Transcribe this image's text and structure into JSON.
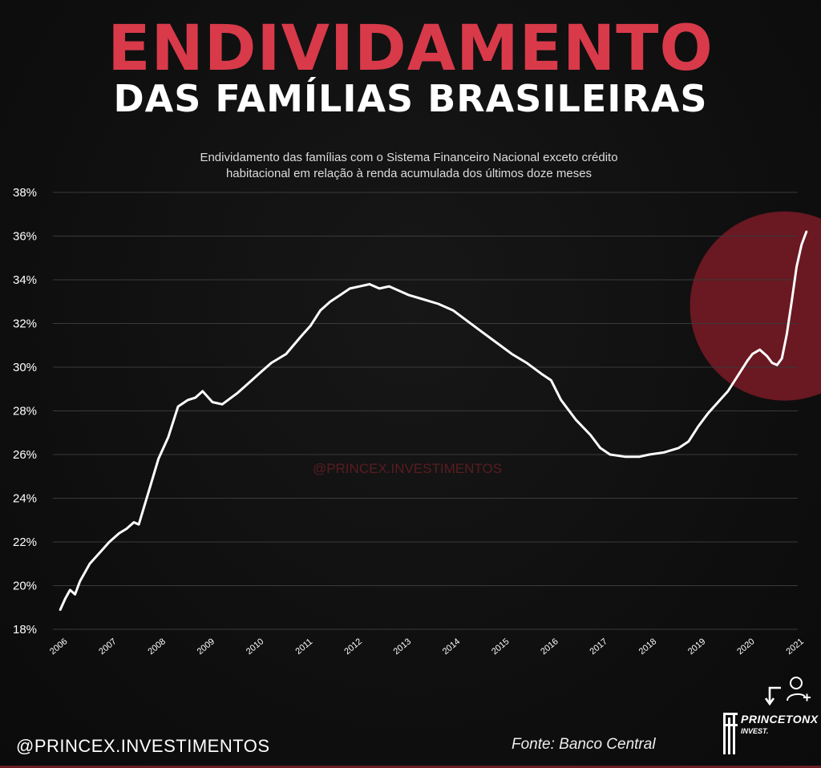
{
  "title": "ENDIVIDAMENTO",
  "subtitle_title": "DAS FAMÍLIAS BRASILEIRAS",
  "description_line1": "Endividamento das famílias com o Sistema Financeiro Nacional exceto crédito",
  "description_line2": "habitacional em relação à renda acumulada dos últimos doze meses",
  "watermark": "@PRINCEX.INVESTIMENTOS",
  "footer": {
    "handle": "@PRINCEX.INVESTIMENTOS",
    "source": "Fonte: Banco Central"
  },
  "brand": {
    "name": "PRINCETONX",
    "sub": "INVEST."
  },
  "colors": {
    "title_red": "#d83a4a",
    "highlight_circle": "#7a1a24",
    "line": "#ffffff",
    "grid": "#3a3a3a"
  },
  "icons": [
    "share-arrow-icon",
    "add-user-icon"
  ],
  "chart_data": {
    "type": "line",
    "title": "",
    "xlabel": "",
    "ylabel": "",
    "ylim": [
      18,
      38
    ],
    "y_ticks": [
      "18%",
      "20%",
      "22%",
      "24%",
      "26%",
      "28%",
      "30%",
      "32%",
      "34%",
      "36%",
      "38%"
    ],
    "x_ticks": [
      "2006",
      "2007",
      "2008",
      "2009",
      "2010",
      "2011",
      "2012",
      "2013",
      "2014",
      "2015",
      "2016",
      "2017",
      "2018",
      "2019",
      "2020",
      "2021"
    ],
    "grid": "horizontal",
    "highlight": {
      "x": 2021.0,
      "y": 32.8,
      "note": "red circle around 2020-2021 surge"
    },
    "series": [
      {
        "x": [
          2006.0,
          2006.1,
          2006.2,
          2006.3,
          2006.4,
          2006.6,
          2006.8,
          2007.0,
          2007.2,
          2007.35,
          2007.5,
          2007.6,
          2007.8,
          2008.0,
          2008.2,
          2008.4,
          2008.6,
          2008.75,
          2008.9,
          2009.1,
          2009.3,
          2009.6,
          2009.9,
          2010.1,
          2010.3,
          2010.6,
          2010.9,
          2011.1,
          2011.3,
          2011.5,
          2011.7,
          2011.9,
          2012.1,
          2012.3,
          2012.5,
          2012.7,
          2012.9,
          2013.1,
          2013.4,
          2013.7,
          2014.0,
          2014.3,
          2014.6,
          2014.9,
          2015.2,
          2015.5,
          2015.8,
          2016.0,
          2016.2,
          2016.5,
          2016.8,
          2017.0,
          2017.2,
          2017.5,
          2017.8,
          2018.0,
          2018.3,
          2018.6,
          2018.8,
          2019.0,
          2019.2,
          2019.4,
          2019.6,
          2019.8,
          2020.0,
          2020.1,
          2020.25,
          2020.4,
          2020.5,
          2020.6,
          2020.7,
          2020.8,
          2020.9,
          2021.0,
          2021.1,
          2021.2
        ],
        "y": [
          18.9,
          19.4,
          19.8,
          19.6,
          20.2,
          21.0,
          21.5,
          22.0,
          22.4,
          22.6,
          22.9,
          22.8,
          24.3,
          25.8,
          26.8,
          28.2,
          28.5,
          28.6,
          28.9,
          28.4,
          28.3,
          28.8,
          29.4,
          29.8,
          30.2,
          30.6,
          31.4,
          31.9,
          32.6,
          33.0,
          33.3,
          33.6,
          33.7,
          33.8,
          33.6,
          33.7,
          33.5,
          33.3,
          33.1,
          32.9,
          32.6,
          32.1,
          31.6,
          31.1,
          30.6,
          30.2,
          29.7,
          29.4,
          28.5,
          27.6,
          26.9,
          26.3,
          26.0,
          25.9,
          25.9,
          26.0,
          26.1,
          26.3,
          26.6,
          27.3,
          27.9,
          28.4,
          28.9,
          29.6,
          30.3,
          30.6,
          30.8,
          30.5,
          30.2,
          30.1,
          30.4,
          31.5,
          33.0,
          34.6,
          35.6,
          36.2
        ]
      }
    ]
  }
}
